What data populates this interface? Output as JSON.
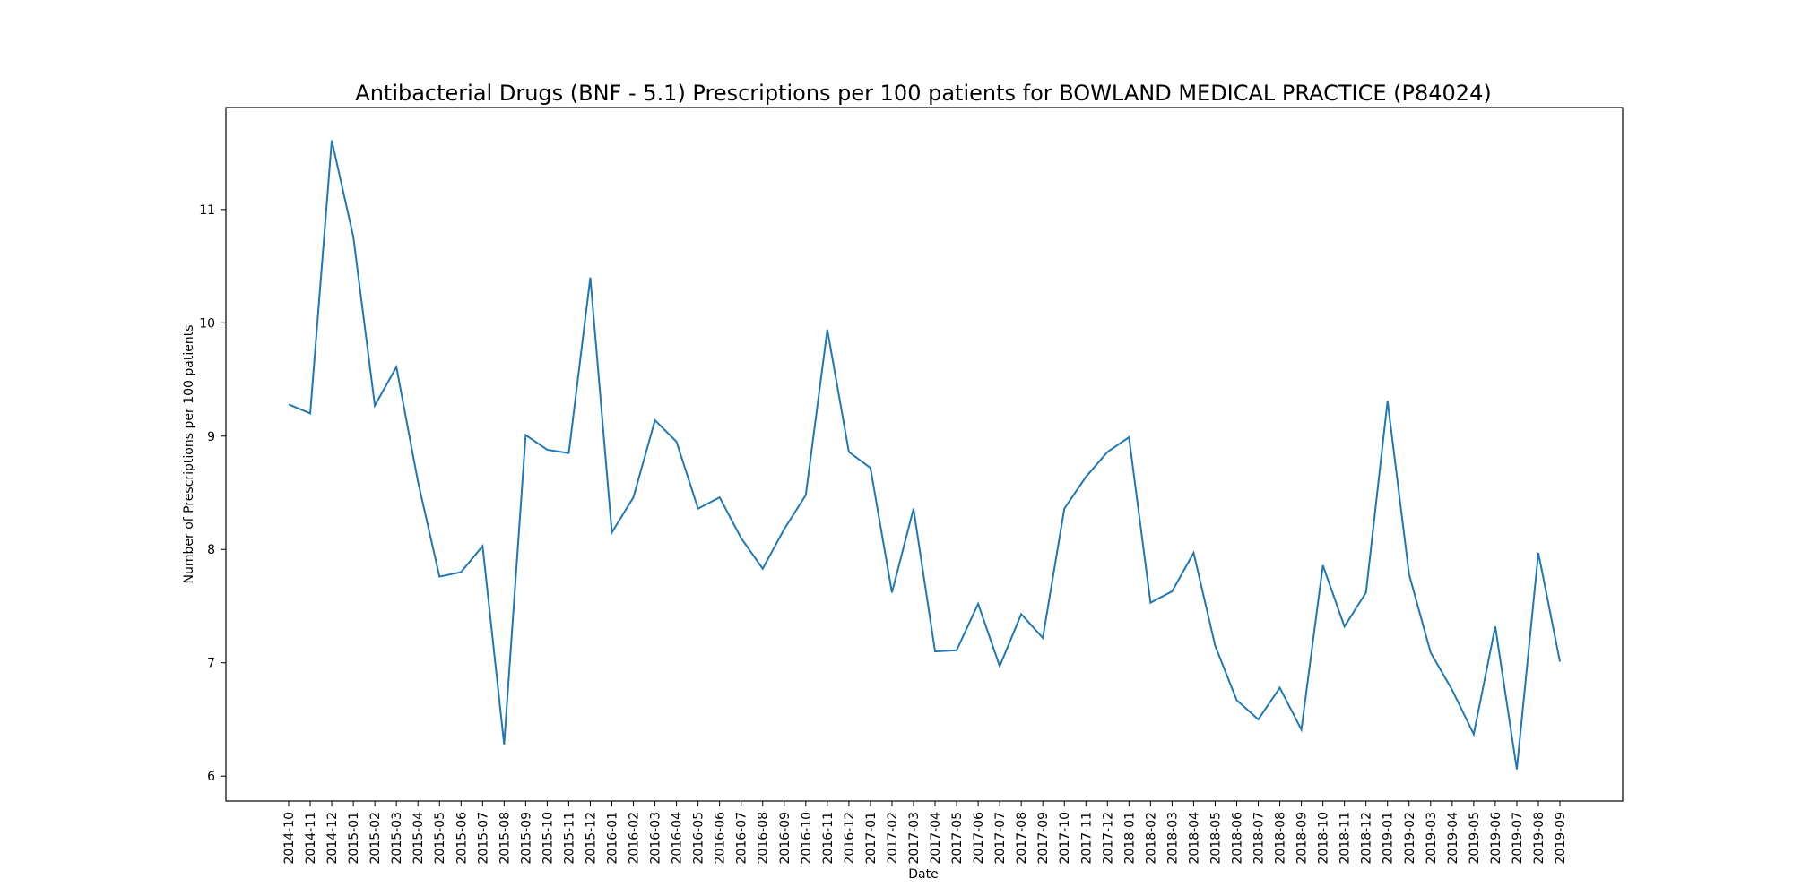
{
  "chart_data": {
    "type": "line",
    "title": "Antibacterial Drugs (BNF - 5.1) Prescriptions per 100 patients for BOWLAND MEDICAL PRACTICE (P84024)",
    "xlabel": "Date",
    "ylabel": "Number of Prescriptions per 100 patients",
    "ylim": [
      5.78,
      11.9
    ],
    "yticks": [
      6,
      7,
      8,
      9,
      10,
      11
    ],
    "grid": false,
    "legend": "none",
    "color": "#1f77b4",
    "x": [
      "2014-10",
      "2014-11",
      "2014-12",
      "2015-01",
      "2015-02",
      "2015-03",
      "2015-04",
      "2015-05",
      "2015-06",
      "2015-07",
      "2015-08",
      "2015-09",
      "2015-10",
      "2015-11",
      "2015-12",
      "2016-01",
      "2016-02",
      "2016-03",
      "2016-04",
      "2016-05",
      "2016-06",
      "2016-07",
      "2016-08",
      "2016-09",
      "2016-10",
      "2016-11",
      "2016-12",
      "2017-01",
      "2017-02",
      "2017-03",
      "2017-04",
      "2017-05",
      "2017-06",
      "2017-07",
      "2017-08",
      "2017-09",
      "2017-10",
      "2017-11",
      "2017-12",
      "2018-01",
      "2018-02",
      "2018-03",
      "2018-04",
      "2018-05",
      "2018-06",
      "2018-07",
      "2018-08",
      "2018-09",
      "2018-10",
      "2018-11",
      "2018-12",
      "2019-01",
      "2019-02",
      "2019-03",
      "2019-04",
      "2019-05",
      "2019-06",
      "2019-07",
      "2019-08",
      "2019-09"
    ],
    "y": [
      9.28,
      9.2,
      11.61,
      10.76,
      9.27,
      9.61,
      8.6,
      7.76,
      7.8,
      8.03,
      6.28,
      9.01,
      8.88,
      8.85,
      10.4,
      8.15,
      8.46,
      9.14,
      8.95,
      8.36,
      8.46,
      8.1,
      7.83,
      8.18,
      8.48,
      9.94,
      8.86,
      8.72,
      7.62,
      8.36,
      7.1,
      7.11,
      7.52,
      6.97,
      7.43,
      7.22,
      8.36,
      8.64,
      8.86,
      8.99,
      7.53,
      7.63,
      7.97,
      7.15,
      6.67,
      6.5,
      6.78,
      6.41,
      7.86,
      7.32,
      7.62,
      9.31,
      7.78,
      7.09,
      6.76,
      6.37,
      7.32,
      6.06,
      7.97,
      7.01
    ]
  }
}
